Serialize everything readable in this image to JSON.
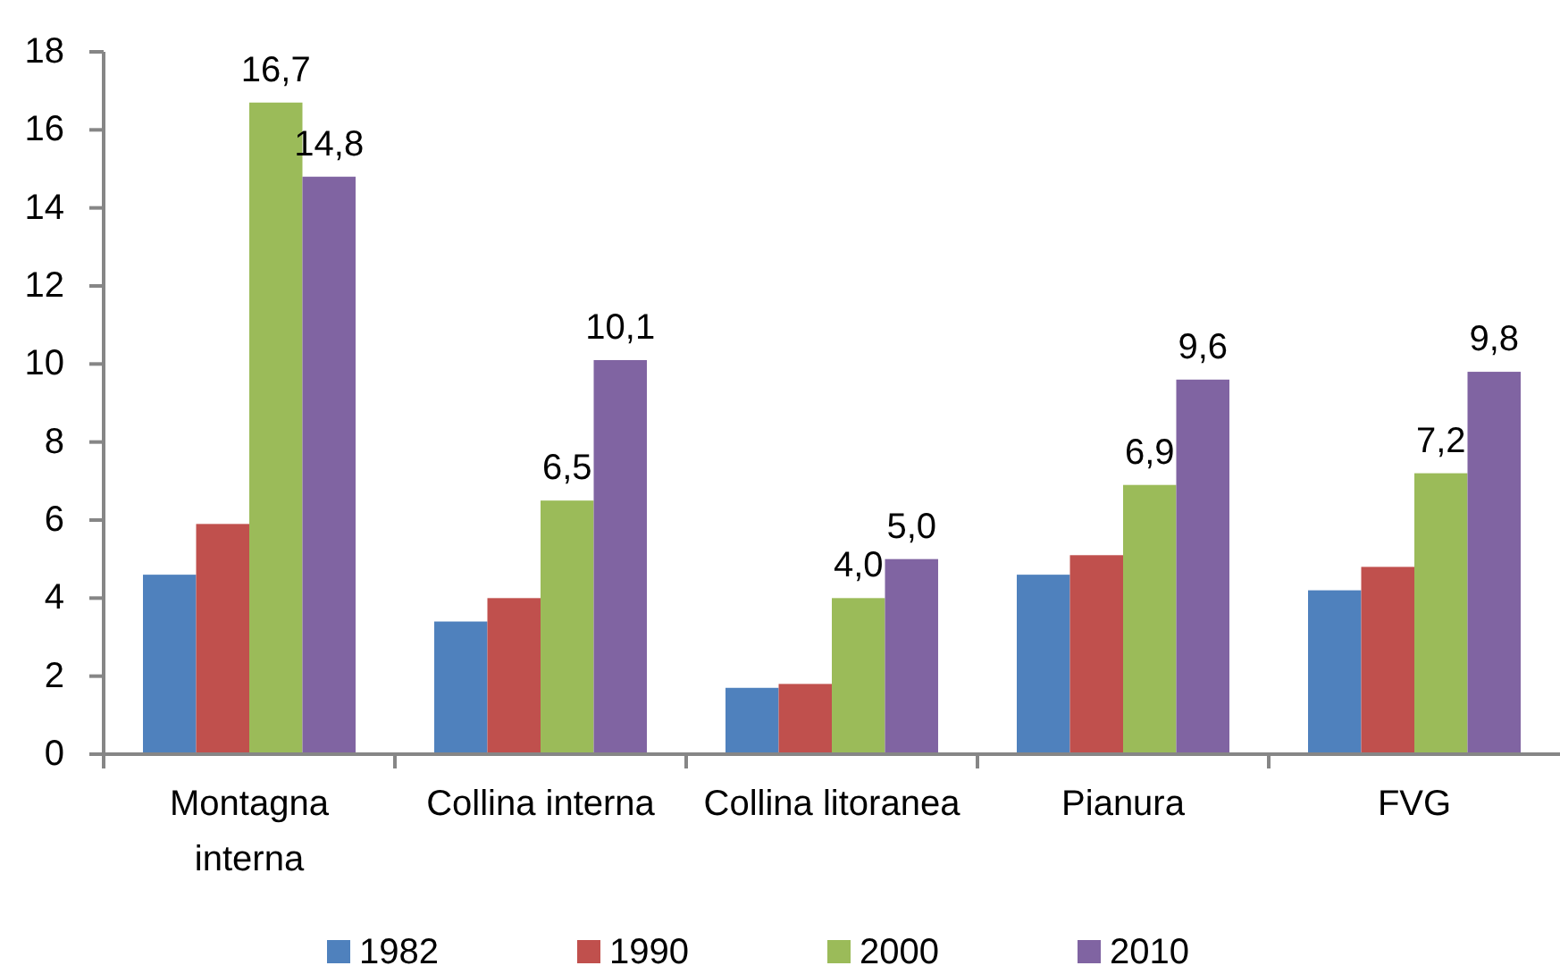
{
  "chart_data": {
    "type": "bar",
    "categories": [
      "Montagna\ninterna",
      "Collina interna",
      "Collina litoranea",
      "Pianura",
      "FVG"
    ],
    "series": [
      {
        "name": "1982",
        "color": "#4f81bd",
        "values": [
          4.6,
          3.4,
          1.7,
          4.6,
          4.2
        ]
      },
      {
        "name": "1990",
        "color": "#c0504d",
        "values": [
          5.9,
          4.0,
          1.8,
          5.1,
          4.8
        ]
      },
      {
        "name": "2000",
        "color": "#9bbb59",
        "values": [
          16.7,
          6.5,
          4.0,
          6.9,
          7.2
        ],
        "value_labels": [
          "16,7",
          "6,5",
          "4,0",
          "6,9",
          "7,2"
        ]
      },
      {
        "name": "2010",
        "color": "#8064a2",
        "values": [
          14.8,
          10.1,
          5.0,
          9.6,
          9.8
        ],
        "value_labels": [
          "14,8",
          "10,1",
          "5,0",
          "9,6",
          "9,8"
        ]
      }
    ],
    "ylim": [
      0,
      18
    ],
    "yticks": [
      0,
      2,
      4,
      6,
      8,
      10,
      12,
      14,
      16,
      18
    ],
    "grid": false,
    "legend": "bottom"
  }
}
